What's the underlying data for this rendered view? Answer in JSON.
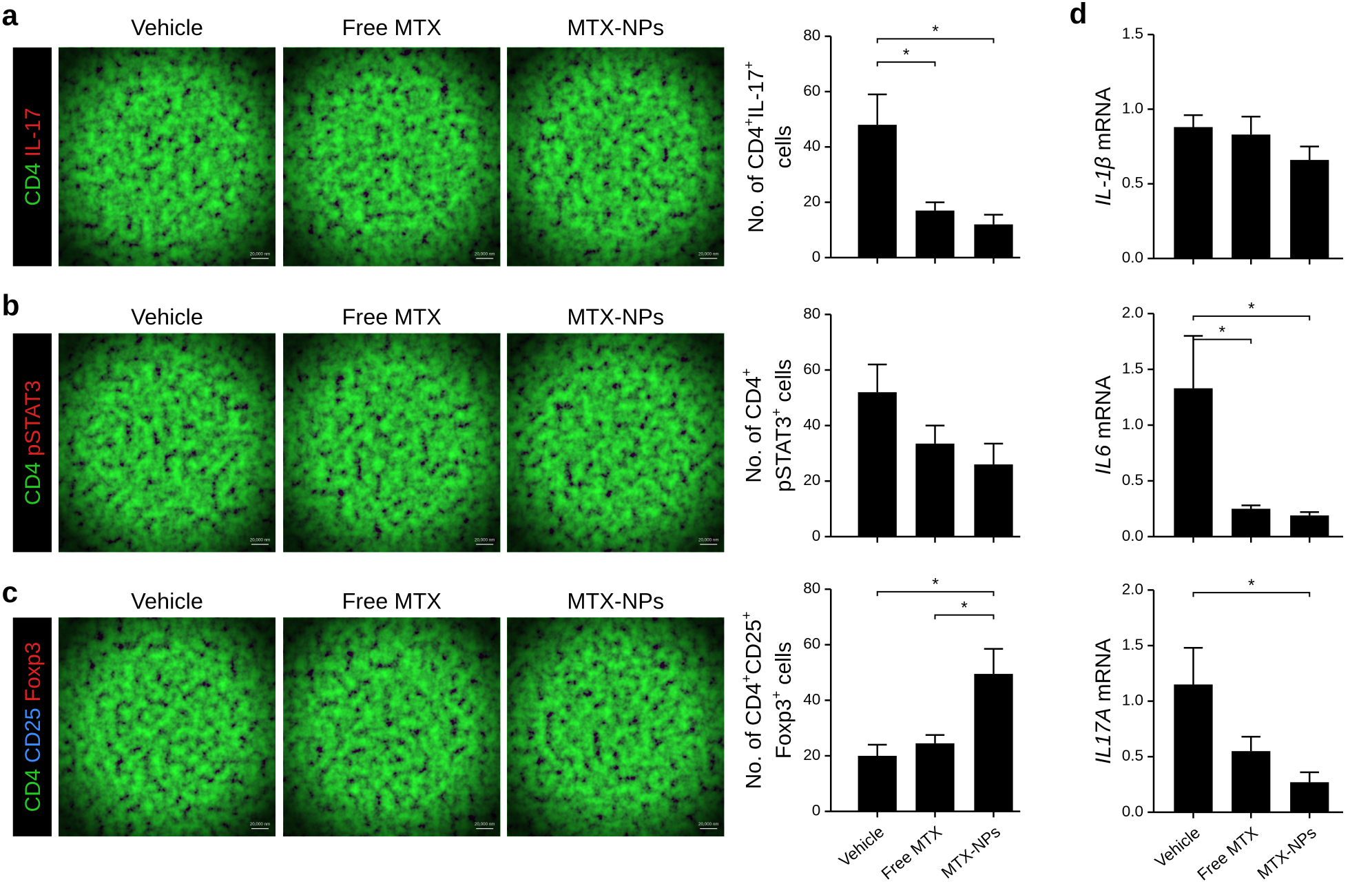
{
  "panels": [
    {
      "letter": "a",
      "stains": [
        {
          "text": "CD4",
          "color": "#22cc22"
        },
        {
          "text": "IL-17",
          "color": "#e02020"
        }
      ],
      "image_titles": [
        "Vehicle",
        "Free MTX",
        "MTX-NPs"
      ],
      "scale_label": "20,000 nm"
    },
    {
      "letter": "b",
      "stains": [
        {
          "text": "CD4",
          "color": "#22cc22"
        },
        {
          "text": "pSTAT3",
          "color": "#e02020"
        }
      ],
      "image_titles": [
        "Vehicle",
        "Free MTX",
        "MTX-NPs"
      ],
      "scale_label": "20,000 nm"
    },
    {
      "letter": "c",
      "stains": [
        {
          "text": "CD4",
          "color": "#22cc22"
        },
        {
          "text": "CD25",
          "color": "#3a8cff"
        },
        {
          "text": "Foxp3",
          "color": "#e02020"
        }
      ],
      "image_titles": [
        "Vehicle",
        "Free MTX",
        "MTX-NPs"
      ],
      "scale_label": "20,000 nm"
    }
  ],
  "chart_data": [
    {
      "type": "bar",
      "color": "#000000",
      "ylabel_lines": [
        [
          {
            "text": "No. of CD4"
          },
          {
            "text": "+",
            "style": "sup"
          },
          {
            "text": "IL-17"
          },
          {
            "text": "+",
            "style": "sup"
          }
        ],
        [
          {
            "text": "cells"
          }
        ]
      ],
      "values": [
        48,
        17,
        12
      ],
      "errors": [
        11,
        3,
        3.5
      ],
      "ylim": [
        0,
        80
      ],
      "yticks": [
        0,
        20,
        40,
        60,
        80
      ],
      "significance": [
        {
          "from": 0,
          "to": 2,
          "label": "*"
        },
        {
          "from": 0,
          "to": 1,
          "label": "*"
        }
      ]
    },
    {
      "type": "bar",
      "color": "#000000",
      "ylabel_lines": [
        [
          {
            "text": "No. of CD4"
          },
          {
            "text": "+",
            "style": "sup"
          }
        ],
        [
          {
            "text": "pSTAT3"
          },
          {
            "text": "+",
            "style": "sup"
          },
          {
            "text": " cells"
          }
        ]
      ],
      "values": [
        52,
        33.5,
        26
      ],
      "errors": [
        10,
        6.5,
        7.5
      ],
      "ylim": [
        0,
        80
      ],
      "yticks": [
        0,
        20,
        40,
        60,
        80
      ],
      "significance": []
    },
    {
      "type": "bar",
      "color": "#000000",
      "ylabel_lines": [
        [
          {
            "text": "No. of CD4"
          },
          {
            "text": "+",
            "style": "sup"
          },
          {
            "text": "CD25"
          },
          {
            "text": "+",
            "style": "sup"
          }
        ],
        [
          {
            "text": "Foxp3"
          },
          {
            "text": "+",
            "style": "sup"
          },
          {
            "text": " cells"
          }
        ]
      ],
      "categories": [
        "Vehicle",
        "Free MTX",
        "MTX-NPs"
      ],
      "values": [
        20,
        24.5,
        49.5
      ],
      "errors": [
        4,
        3,
        9
      ],
      "ylim": [
        0,
        80
      ],
      "yticks": [
        0,
        20,
        40,
        60,
        80
      ],
      "significance": [
        {
          "from": 0,
          "to": 2,
          "label": "*"
        },
        {
          "from": 1,
          "to": 2,
          "label": "*"
        }
      ]
    },
    {
      "type": "bar",
      "color": "#000000",
      "panel_letter": "d",
      "ylabel_lines": [
        [
          {
            "text": "IL-1β",
            "style": "italic"
          },
          {
            "text": " mRNA"
          }
        ]
      ],
      "values": [
        0.88,
        0.83,
        0.66
      ],
      "errors": [
        0.08,
        0.12,
        0.09
      ],
      "ylim": [
        0,
        1.5
      ],
      "yticks": [
        {
          "value": 0,
          "label": "0.0"
        },
        0.5,
        {
          "value": 1,
          "label": "1.0"
        },
        1.5
      ],
      "significance": []
    },
    {
      "type": "bar",
      "color": "#000000",
      "ylabel_lines": [
        [
          {
            "text": "IL6",
            "style": "italic"
          },
          {
            "text": " mRNA"
          }
        ]
      ],
      "values": [
        1.33,
        0.25,
        0.19
      ],
      "errors": [
        0.47,
        0.03,
        0.03
      ],
      "ylim": [
        0,
        2
      ],
      "yticks": [
        {
          "value": 0,
          "label": "0.0"
        },
        0.5,
        {
          "value": 1,
          "label": "1.0"
        },
        1.5,
        {
          "value": 2,
          "label": "2.0"
        }
      ],
      "significance": [
        {
          "from": 0,
          "to": 2,
          "label": "*"
        },
        {
          "from": 0,
          "to": 1,
          "label": "*"
        }
      ]
    },
    {
      "type": "bar",
      "color": "#000000",
      "ylabel_lines": [
        [
          {
            "text": "IL17A",
            "style": "italic"
          },
          {
            "text": " mRNA"
          }
        ]
      ],
      "categories": [
        "Vehicle",
        "Free MTX",
        "MTX-NPs"
      ],
      "values": [
        1.15,
        0.55,
        0.27
      ],
      "errors": [
        0.33,
        0.13,
        0.09
      ],
      "ylim": [
        0,
        2
      ],
      "yticks": [
        {
          "value": 0,
          "label": "0.0"
        },
        0.5,
        {
          "value": 1,
          "label": "1.0"
        },
        1.5,
        {
          "value": 2,
          "label": "2.0"
        }
      ],
      "significance": [
        {
          "from": 0,
          "to": 2,
          "label": "*"
        }
      ]
    }
  ]
}
